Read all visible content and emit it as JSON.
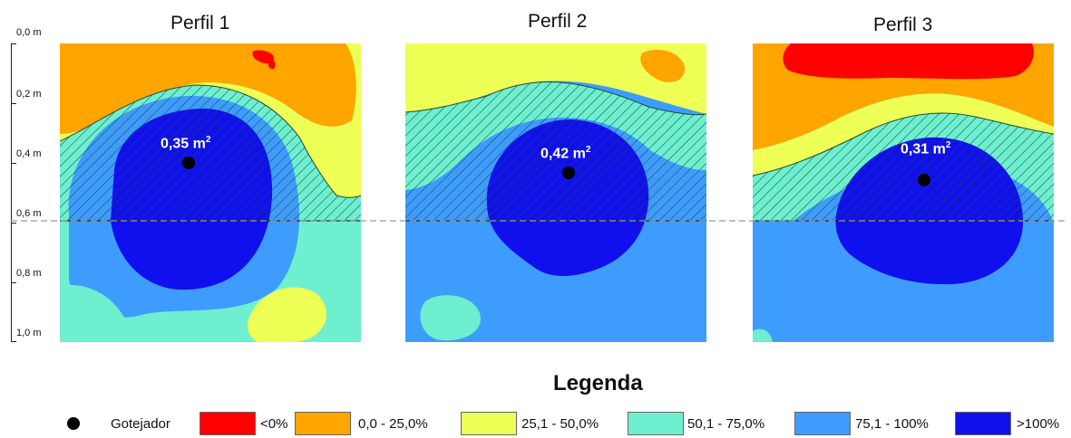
{
  "profiles": [
    {
      "title": "Perfil 1",
      "area_value": "0,35 m",
      "area_exp": "2"
    },
    {
      "title": "Perfil 2",
      "area_value": "0,42 m",
      "area_exp": "2"
    },
    {
      "title": "Perfil 3",
      "area_value": "0,31 m",
      "area_exp": "2"
    }
  ],
  "depth_axis": [
    "0,0 m",
    "0,2 m",
    "0,4 m",
    "0,6 m",
    "0,8 m",
    "1,0 m"
  ],
  "legend": {
    "title": "Legenda",
    "emitter_label": "Gotejador",
    "classes": [
      {
        "label": "<0%",
        "color": "#ff0000"
      },
      {
        "label": "0,0 - 25,0%",
        "color": "#ffa500"
      },
      {
        "label": "25,1 - 50,0%",
        "color": "#eeff55"
      },
      {
        "label": "50,1 - 75,0%",
        "color": "#6ef0d0"
      },
      {
        "label": "75,1 - 100%",
        "color": "#3f9cff"
      },
      {
        "label": ">100%",
        "color": "#1010ee"
      }
    ]
  },
  "colors": {
    "red": "#ff0000",
    "orange": "#ffa500",
    "yellow": "#eeff55",
    "aqua": "#6ef0d0",
    "light_blue": "#3f9cff",
    "dark_blue": "#1010ee",
    "reference_line": "#999999"
  }
}
